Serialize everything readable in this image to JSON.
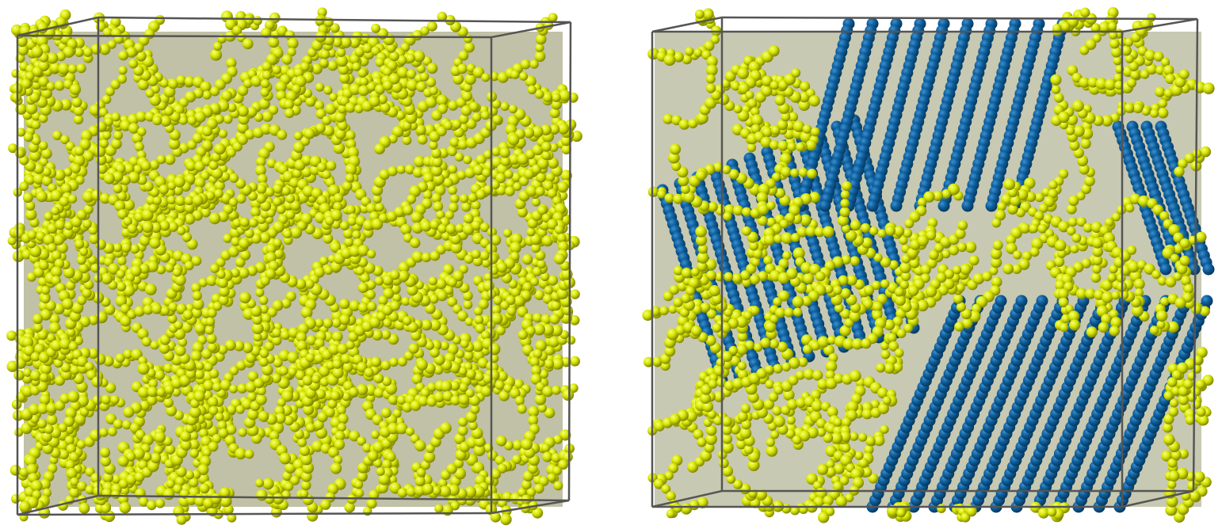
{
  "panels": [
    {
      "id": "amorphous",
      "bead_color": "#d7e600",
      "bead_highlight": "#f7ff7a",
      "bead_shadow": "#6f7400",
      "box_color": "#555555"
    },
    {
      "id": "partially-crystallized",
      "bead_color": "#d7e600",
      "bead_highlight": "#f7ff7a",
      "bead_shadow": "#6f7400",
      "crystal_color": "#0d5e9b",
      "crystal_highlight": "#3d8fd0",
      "crystal_shadow": "#06304f",
      "box_color": "#555555"
    }
  ]
}
